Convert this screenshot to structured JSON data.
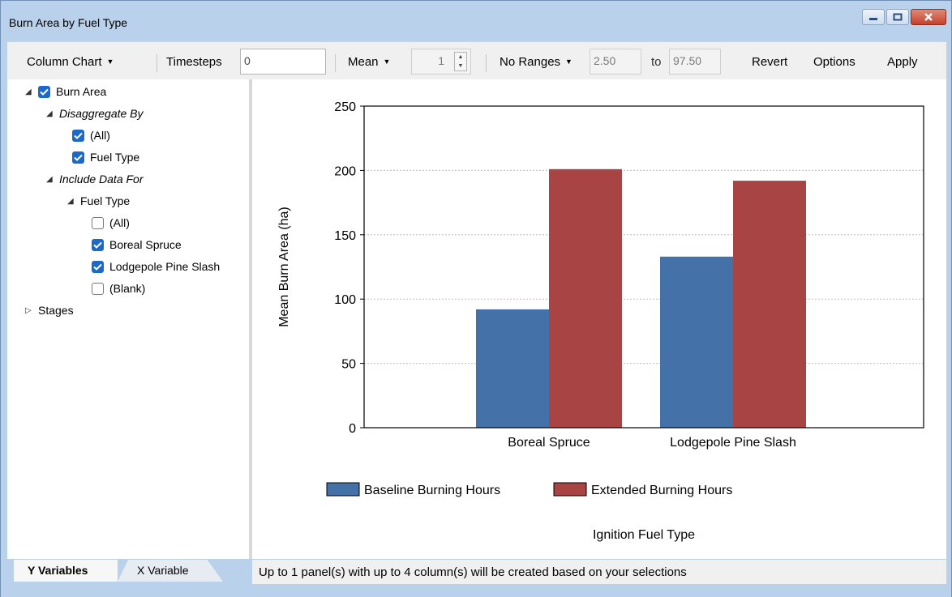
{
  "window": {
    "title": "Burn Area by Fuel Type",
    "minimize_icon": "minimize-icon",
    "maximize_icon": "maximize-icon",
    "close_icon": "close-icon"
  },
  "toolbar": {
    "chart_type": "Column Chart",
    "timesteps_label": "Timesteps",
    "timesteps_value": "0",
    "stat": "Mean",
    "spin_value": "1",
    "ranges": "No Ranges",
    "range_low": "2.50",
    "to_label": "to",
    "range_high": "97.50",
    "revert": "Revert",
    "options": "Options",
    "apply": "Apply"
  },
  "tree": {
    "burn_area": "Burn Area",
    "disaggregate_by": "Disaggregate By",
    "dis_all": "(All)",
    "dis_fuel_type": "Fuel Type",
    "include_data_for": "Include Data For",
    "inc_fuel_type": "Fuel Type",
    "inc_all": "(All)",
    "inc_boreal": "Boreal Spruce",
    "inc_lodgepole": "Lodgepole Pine Slash",
    "inc_blank": "(Blank)",
    "stages": "Stages"
  },
  "tabs": {
    "y_variables": "Y Variables",
    "x_variable": "X Variable"
  },
  "status": {
    "text": "Up to 1 panel(s) with up to 4 column(s) will be created based on your selections"
  },
  "colors": {
    "baseline": "#4472a8",
    "extended": "#a84444",
    "checkbox": "#1b6ac9"
  },
  "chart_data": {
    "type": "bar",
    "categories": [
      "Boreal Spruce",
      "Lodgepole Pine Slash"
    ],
    "series": [
      {
        "name": "Baseline Burning Hours",
        "values": [
          92,
          133
        ]
      },
      {
        "name": "Extended Burning Hours",
        "values": [
          201,
          192
        ]
      }
    ],
    "xlabel": "Ignition Fuel Type",
    "ylabel": "Mean Burn Area (ha)",
    "ylim": [
      0,
      250
    ],
    "yticks": [
      0,
      50,
      100,
      150,
      200,
      250
    ],
    "grid": true,
    "legend": "bottom"
  }
}
